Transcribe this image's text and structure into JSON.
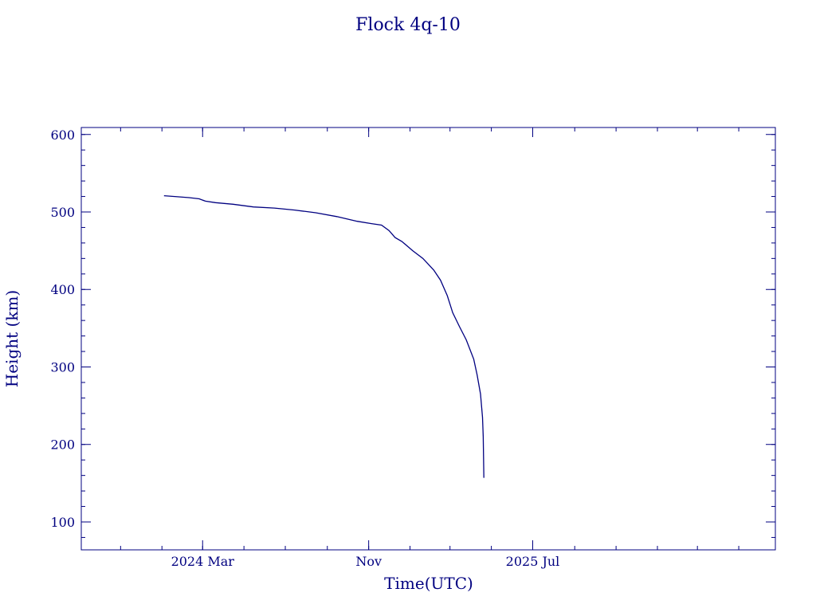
{
  "chart_data": {
    "type": "line",
    "title": "Flock 4q-10",
    "xlabel": "Time(UTC)",
    "ylabel": "Height (km)",
    "x_tick_labels": [
      {
        "date": "2024-03-01",
        "label": "2024 Mar"
      },
      {
        "date": "2024-11-01",
        "label": "Nov"
      },
      {
        "date": "2025-07-01",
        "label": "2025 Jul"
      }
    ],
    "y_ticks": [
      100,
      200,
      300,
      400,
      500,
      600
    ],
    "ylim": [
      64,
      609
    ],
    "xlim": [
      "2023-09-04",
      "2026-06-24"
    ],
    "grid": false,
    "colors": {
      "axis": "#000080",
      "line": "#000080",
      "background": "#ffffff"
    },
    "series": [
      {
        "points": [
          [
            "2024-01-04",
            521
          ],
          [
            "2024-01-20",
            520
          ],
          [
            "2024-02-10",
            518.5
          ],
          [
            "2024-02-25",
            517
          ],
          [
            "2024-03-05",
            514
          ],
          [
            "2024-03-20",
            512
          ],
          [
            "2024-04-15",
            510
          ],
          [
            "2024-05-15",
            506.5
          ],
          [
            "2024-06-15",
            505
          ],
          [
            "2024-07-15",
            502.5
          ],
          [
            "2024-08-15",
            499
          ],
          [
            "2024-09-15",
            494
          ],
          [
            "2024-10-15",
            488
          ],
          [
            "2024-11-05",
            485
          ],
          [
            "2024-11-20",
            483
          ],
          [
            "2024-12-01",
            476
          ],
          [
            "2024-12-10",
            467
          ],
          [
            "2024-12-20",
            462
          ],
          [
            "2025-01-05",
            450
          ],
          [
            "2025-01-20",
            440
          ],
          [
            "2025-02-05",
            425
          ],
          [
            "2025-02-15",
            412
          ],
          [
            "2025-02-25",
            392
          ],
          [
            "2025-03-05",
            370
          ],
          [
            "2025-03-15",
            352
          ],
          [
            "2025-03-25",
            335
          ],
          [
            "2025-04-05",
            310
          ],
          [
            "2025-04-10",
            290
          ],
          [
            "2025-04-15",
            265
          ],
          [
            "2025-04-18",
            235
          ],
          [
            "2025-04-19",
            210
          ],
          [
            "2025-04-20",
            157
          ]
        ]
      }
    ]
  }
}
